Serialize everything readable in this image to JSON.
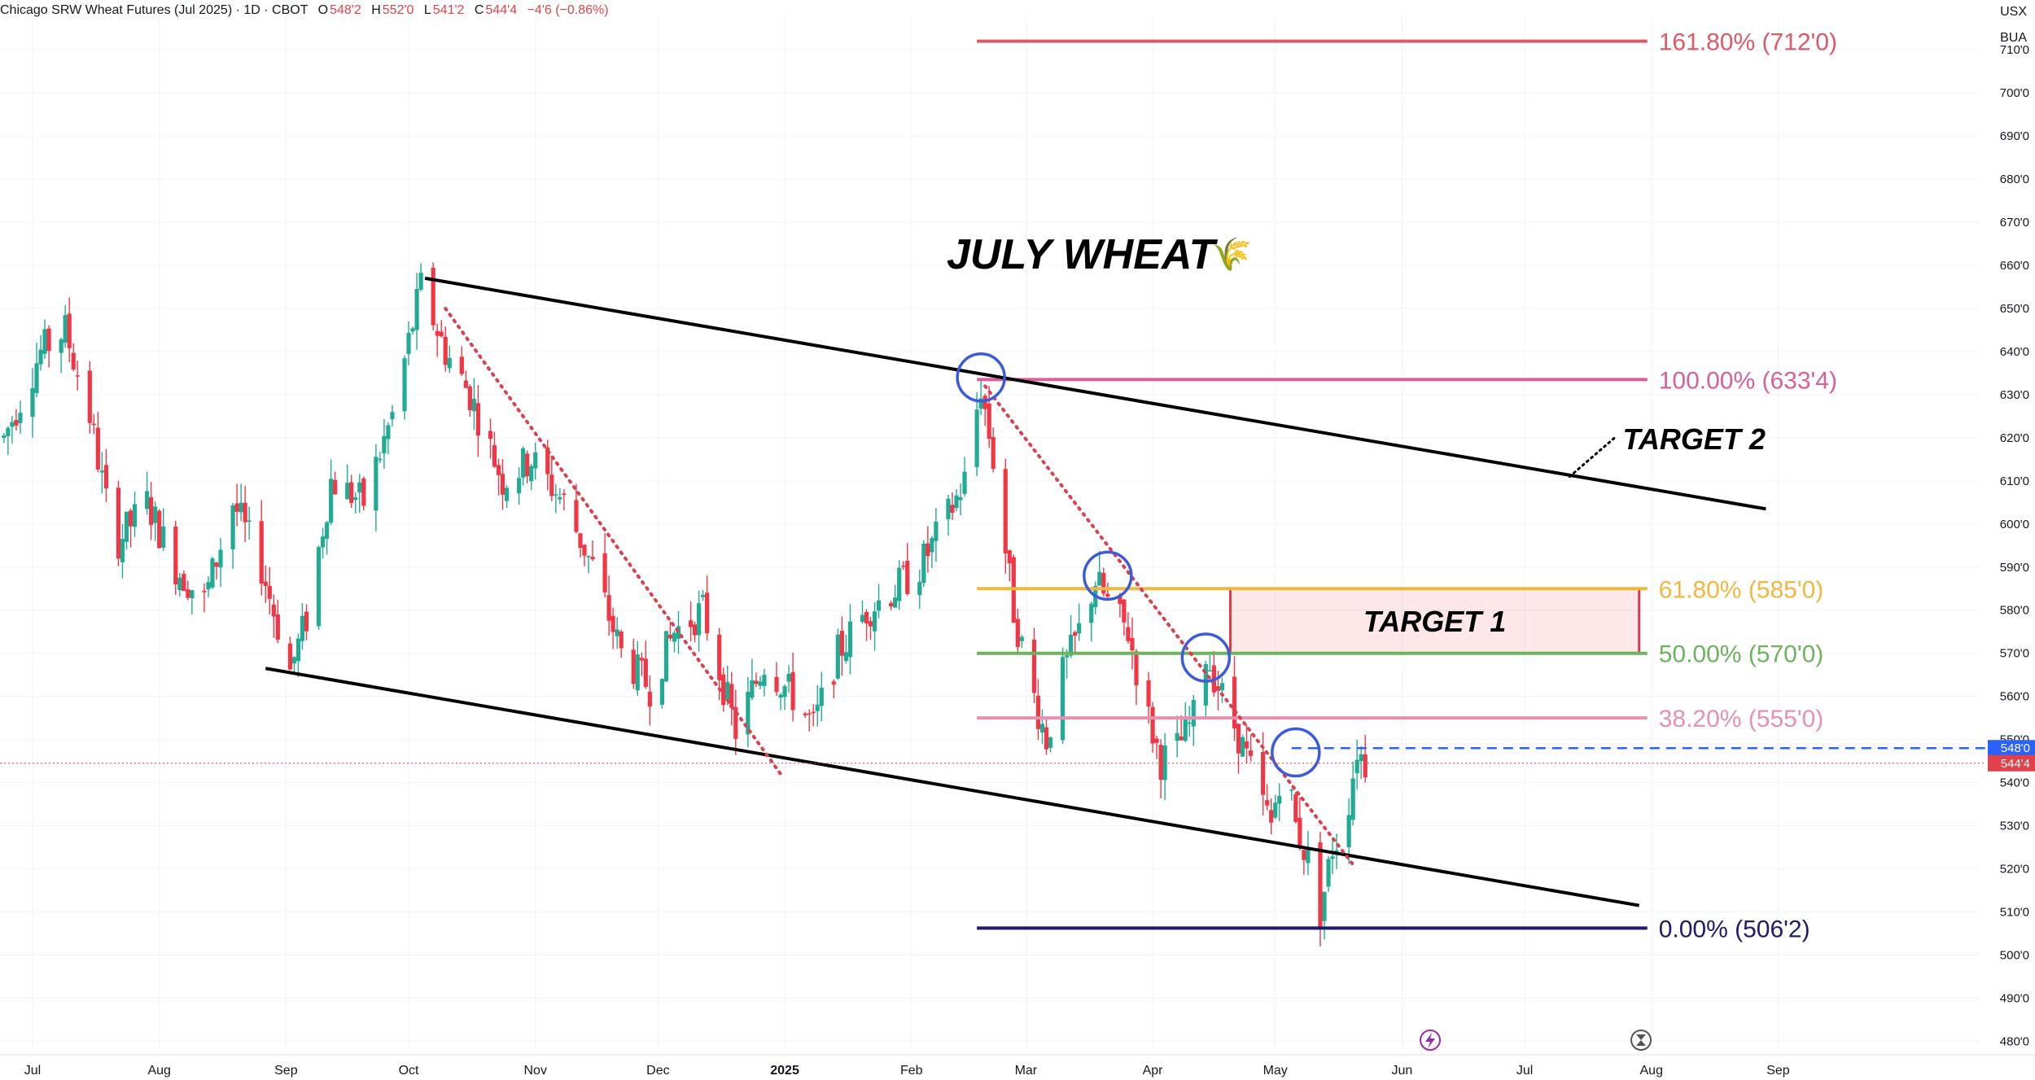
{
  "header": {
    "symbol_title": "Chicago SRW Wheat Futures (Jul 2025) · 1D · CBOT",
    "open_label": "O",
    "open": "548'2",
    "high_label": "H",
    "high": "552'0",
    "low_label": "L",
    "low": "541'2",
    "close_label": "C",
    "close": "544'4",
    "change": "−4'6 (−0.86%)"
  },
  "currency": {
    "line1": "USX",
    "line2": "BUA"
  },
  "chart_data": {
    "type": "candlestick",
    "title": "JULY WHEAT",
    "title_emoji": "🌾",
    "y_axis": {
      "ylim": [
        478,
        714
      ],
      "ticks": [
        {
          "value": 480,
          "label": "480'0"
        },
        {
          "value": 490,
          "label": "490'0"
        },
        {
          "value": 500,
          "label": "500'0"
        },
        {
          "value": 510,
          "label": "510'0"
        },
        {
          "value": 520,
          "label": "520'0"
        },
        {
          "value": 530,
          "label": "530'0"
        },
        {
          "value": 540,
          "label": "540'0"
        },
        {
          "value": 550,
          "label": "550'0"
        },
        {
          "value": 560,
          "label": "560'0"
        },
        {
          "value": 570,
          "label": "570'0"
        },
        {
          "value": 580,
          "label": "580'0"
        },
        {
          "value": 590,
          "label": "590'0"
        },
        {
          "value": 600,
          "label": "600'0"
        },
        {
          "value": 610,
          "label": "610'0"
        },
        {
          "value": 620,
          "label": "620'0"
        },
        {
          "value": 630,
          "label": "630'0"
        },
        {
          "value": 640,
          "label": "640'0"
        },
        {
          "value": 650,
          "label": "650'0"
        },
        {
          "value": 660,
          "label": "660'0"
        },
        {
          "value": 670,
          "label": "670'0"
        },
        {
          "value": 680,
          "label": "680'0"
        },
        {
          "value": 690,
          "label": "690'0"
        },
        {
          "value": 700,
          "label": "700'0"
        },
        {
          "value": 710,
          "label": "710'0"
        }
      ]
    },
    "x_axis": {
      "xlim": [
        "2024-07-01",
        "2025-09-27"
      ],
      "ticks": [
        {
          "date": "2024-07-01",
          "label": "Jul"
        },
        {
          "date": "2024-08-01",
          "label": "Aug"
        },
        {
          "date": "2024-09-01",
          "label": "Sep"
        },
        {
          "date": "2024-10-01",
          "label": "Oct"
        },
        {
          "date": "2024-11-01",
          "label": "Nov"
        },
        {
          "date": "2024-12-01",
          "label": "Dec"
        },
        {
          "date": "2025-01-01",
          "label": "2025"
        },
        {
          "date": "2025-02-01",
          "label": "Feb"
        },
        {
          "date": "2025-03-01",
          "label": "Mar"
        },
        {
          "date": "2025-04-01",
          "label": "Apr"
        },
        {
          "date": "2025-05-01",
          "label": "May"
        },
        {
          "date": "2025-06-01",
          "label": "Jun"
        },
        {
          "date": "2025-07-01",
          "label": "Jul"
        },
        {
          "date": "2025-08-01",
          "label": "Aug"
        },
        {
          "date": "2025-09-01",
          "label": "Sep"
        }
      ]
    },
    "price_path": [
      [
        "2024-06-24",
        620
      ],
      [
        "2024-07-03",
        640
      ],
      [
        "2024-07-09",
        645
      ],
      [
        "2024-07-15",
        625
      ],
      [
        "2024-07-21",
        595
      ],
      [
        "2024-07-29",
        605
      ],
      [
        "2024-08-05",
        590
      ],
      [
        "2024-08-12",
        582
      ],
      [
        "2024-08-19",
        605
      ],
      [
        "2024-08-26",
        590
      ],
      [
        "2024-09-02",
        566
      ],
      [
        "2024-09-06",
        578
      ],
      [
        "2024-09-12",
        610
      ],
      [
        "2024-09-20",
        605
      ],
      [
        "2024-09-27",
        625
      ],
      [
        "2024-10-04",
        655
      ],
      [
        "2024-10-10",
        640
      ],
      [
        "2024-10-16",
        630
      ],
      [
        "2024-10-24",
        610
      ],
      [
        "2024-10-31",
        615
      ],
      [
        "2024-11-08",
        605
      ],
      [
        "2024-11-15",
        590
      ],
      [
        "2024-11-22",
        570
      ],
      [
        "2024-11-29",
        562
      ],
      [
        "2024-12-05",
        575
      ],
      [
        "2024-12-12",
        580
      ],
      [
        "2024-12-20",
        552
      ],
      [
        "2024-12-27",
        568
      ],
      [
        "2025-01-03",
        560
      ],
      [
        "2025-01-08",
        553
      ],
      [
        "2025-01-14",
        570
      ],
      [
        "2025-01-21",
        580
      ],
      [
        "2025-01-28",
        585
      ],
      [
        "2025-02-03",
        590
      ],
      [
        "2025-02-09",
        600
      ],
      [
        "2025-02-14",
        610
      ],
      [
        "2025-02-18",
        632
      ],
      [
        "2025-02-21",
        615
      ],
      [
        "2025-02-26",
        580
      ],
      [
        "2025-03-02",
        563
      ],
      [
        "2025-03-06",
        550
      ],
      [
        "2025-03-10",
        565
      ],
      [
        "2025-03-14",
        575
      ],
      [
        "2025-03-18",
        587
      ],
      [
        "2025-03-22",
        580
      ],
      [
        "2025-03-26",
        575
      ],
      [
        "2025-03-30",
        558
      ],
      [
        "2025-04-03",
        545
      ],
      [
        "2025-04-07",
        548
      ],
      [
        "2025-04-11",
        555
      ],
      [
        "2025-04-14",
        570
      ],
      [
        "2025-04-18",
        560
      ],
      [
        "2025-04-22",
        551
      ],
      [
        "2025-04-26",
        540
      ],
      [
        "2025-04-30",
        530
      ],
      [
        "2025-05-03",
        547
      ],
      [
        "2025-05-06",
        530
      ],
      [
        "2025-05-09",
        522
      ],
      [
        "2025-05-12",
        510
      ],
      [
        "2025-05-15",
        525
      ],
      [
        "2025-05-18",
        530
      ],
      [
        "2025-05-21",
        548
      ],
      [
        "2025-05-23",
        544.5
      ]
    ],
    "fib_levels": [
      {
        "pct": "161.80%",
        "price": 712,
        "label": "161.80% (712'0)",
        "color": "#dc5a66"
      },
      {
        "pct": "100.00%",
        "price": 633.5,
        "label": "100.00% (633'4)",
        "color": "#d8609a"
      },
      {
        "pct": "61.80%",
        "price": 585,
        "label": "61.80% (585'0)",
        "color": "#f0b840"
      },
      {
        "pct": "50.00%",
        "price": 570,
        "label": "50.00% (570'0)",
        "color": "#6db35e"
      },
      {
        "pct": "38.20%",
        "price": 555,
        "label": "38.20% (555'0)",
        "color": "#e691ad"
      },
      {
        "pct": "0.00%",
        "price": 506.25,
        "label": "0.00% (506'2)",
        "color": "#1e1b6e"
      }
    ],
    "fib_start_date": "2025-02-17",
    "fib_end_date": "2025-07-31",
    "channel_upper": [
      [
        "2024-10-05",
        657
      ],
      [
        "2025-08-29",
        603.5
      ]
    ],
    "channel_lower": [
      [
        "2024-08-27",
        566.5
      ],
      [
        "2025-07-29",
        511.5
      ]
    ],
    "downtrend_1": [
      [
        "2024-10-10",
        650
      ],
      [
        "2024-12-31",
        542
      ]
    ],
    "downtrend_2": [
      [
        "2025-02-19",
        632
      ],
      [
        "2025-05-20",
        521
      ]
    ],
    "circles": [
      [
        "2025-02-18",
        634
      ],
      [
        "2025-03-21",
        588
      ],
      [
        "2025-04-14",
        569
      ],
      [
        "2025-05-06",
        547
      ]
    ],
    "target_1": {
      "label": "TARGET 1",
      "start": "2025-04-20",
      "end": "2025-07-29",
      "high": 585,
      "low": 570
    },
    "target_2": {
      "label": "TARGET 2",
      "arrow_from": [
        "2025-07-12",
        611
      ],
      "arrow_to": [
        "2025-07-23",
        620
      ]
    },
    "last_high": {
      "label": "548'0",
      "price": 548,
      "color": "#2962ff"
    },
    "last_close": {
      "label": "544'4",
      "price": 544.5,
      "color": "#e0424b"
    }
  }
}
